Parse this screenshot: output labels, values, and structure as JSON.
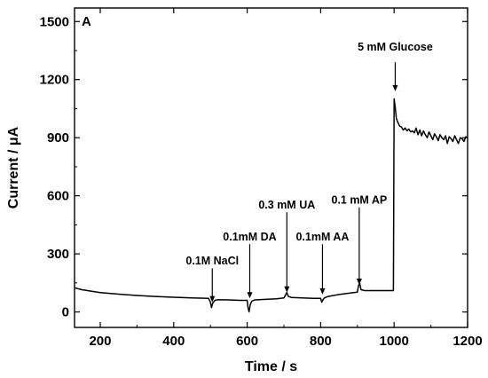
{
  "chart_data": {
    "type": "line",
    "panel_label": "A",
    "xlabel": "Time / s",
    "ylabel": "Current / μA",
    "xlim": [
      130,
      1200
    ],
    "ylim": [
      -80,
      1570
    ],
    "xticks": [
      200,
      400,
      600,
      800,
      1000,
      1200
    ],
    "yticks": [
      0,
      300,
      600,
      900,
      1200,
      1500
    ],
    "grid": false,
    "series": [
      {
        "x": [
          130,
          150,
          200,
          250,
          300,
          350,
          400,
          450,
          495,
          500,
          503,
          506,
          512,
          520,
          550,
          580,
          600,
          602,
          605,
          608,
          612,
          620,
          650,
          680,
          700,
          705,
          708,
          712,
          720,
          750,
          780,
          800,
          803,
          806,
          810,
          820,
          850,
          880,
          900,
          903,
          906,
          910,
          920,
          950,
          980,
          998,
          1000,
          1003,
          1006,
          1010,
          1015,
          1020,
          1025,
          1030,
          1035,
          1040,
          1045,
          1050,
          1055,
          1060,
          1065,
          1070,
          1075,
          1080,
          1085,
          1090,
          1095,
          1100,
          1105,
          1110,
          1115,
          1120,
          1125,
          1130,
          1135,
          1140,
          1145,
          1150,
          1155,
          1160,
          1165,
          1170,
          1175,
          1180,
          1185,
          1190,
          1195,
          1200
        ],
        "y": [
          125,
          115,
          100,
          92,
          85,
          80,
          76,
          72,
          70,
          50,
          22,
          45,
          60,
          63,
          62,
          60,
          60,
          25,
          0,
          35,
          55,
          62,
          65,
          68,
          72,
          90,
          100,
          80,
          75,
          72,
          70,
          70,
          50,
          62,
          72,
          80,
          90,
          98,
          102,
          135,
          150,
          115,
          110,
          110,
          110,
          110,
          1100,
          1060,
          1000,
          980,
          960,
          955,
          940,
          950,
          935,
          945,
          930,
          935,
          925,
          950,
          915,
          940,
          910,
          935,
          915,
          900,
          930,
          910,
          890,
          920,
          905,
          885,
          915,
          900,
          890,
          910,
          870,
          905,
          895,
          880,
          910,
          890,
          870,
          900,
          895,
          880,
          905,
          900
        ]
      }
    ],
    "annotations": [
      {
        "label": "0.1M NaCl",
        "x": 505,
        "y_text": 245,
        "arrow_from": 225,
        "arrow_to": 50
      },
      {
        "label": "0.1mM DA",
        "x": 607,
        "y_text": 370,
        "arrow_from": 350,
        "arrow_to": 70
      },
      {
        "label": "0.3 mM UA",
        "x": 708,
        "y_text": 535,
        "arrow_from": 515,
        "arrow_to": 100
      },
      {
        "label": "0.1mM AA",
        "x": 805,
        "y_text": 370,
        "arrow_from": 350,
        "arrow_to": 90
      },
      {
        "label": "0.1 mM AP",
        "x": 905,
        "y_text": 560,
        "arrow_from": 540,
        "arrow_to": 140
      },
      {
        "label": "5 mM Glucose",
        "x": 1003,
        "y_text": 1350,
        "arrow_from": 1290,
        "arrow_to": 1140
      }
    ]
  }
}
